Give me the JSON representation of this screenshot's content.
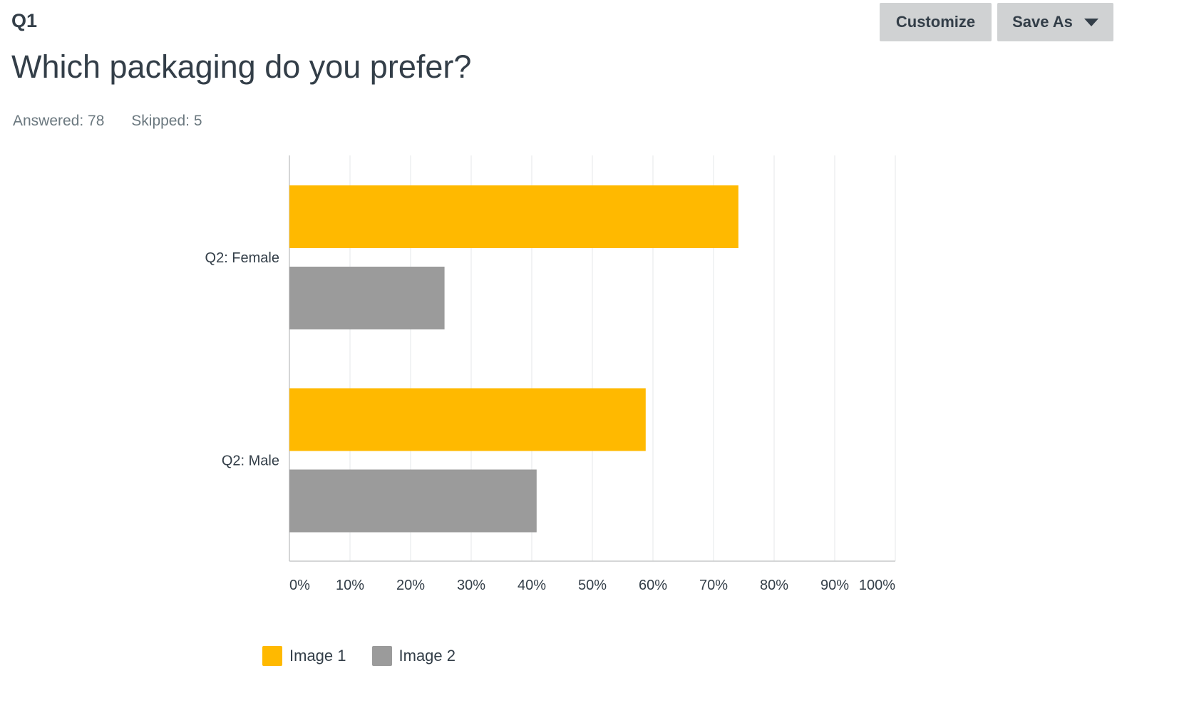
{
  "question": {
    "number": "Q1",
    "title": "Which packaging do you prefer?",
    "answered": "Answered: 78",
    "skipped": "Skipped: 5"
  },
  "toolbar": {
    "customize_label": "Customize",
    "save_as_label": "Save As"
  },
  "chart_data": {
    "type": "bar",
    "orientation": "horizontal",
    "categories": [
      "Q2: Female",
      "Q2: Male"
    ],
    "series": [
      {
        "name": "Image 1",
        "color": "#ffb900",
        "values": [
          74.1,
          58.8
        ]
      },
      {
        "name": "Image 2",
        "color": "#9b9b9b",
        "values": [
          25.6,
          40.8
        ]
      }
    ],
    "x_ticks": [
      "0%",
      "10%",
      "20%",
      "30%",
      "40%",
      "50%",
      "60%",
      "70%",
      "80%",
      "90%",
      "100%"
    ],
    "xlim": [
      0,
      100
    ],
    "title": "",
    "xlabel": "",
    "ylabel": "",
    "grid": true,
    "legend": "bottom"
  }
}
